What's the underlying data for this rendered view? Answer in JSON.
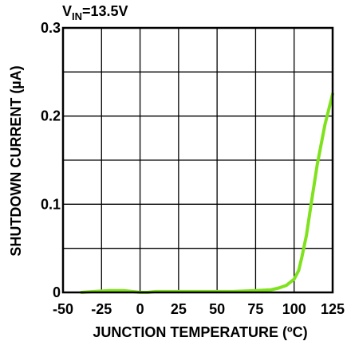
{
  "chart_data": {
    "type": "line",
    "annotation": {
      "main": "V",
      "sub": "IN",
      "rest": "=13.5V"
    },
    "xlabel": "JUNCTION TEMPERATURE (ºC)",
    "ylabel": "SHUTDOWN CURRENT (µA)",
    "xlim": [
      -50,
      125
    ],
    "ylim": [
      0,
      0.3
    ],
    "x_ticks": [
      -50,
      -25,
      0,
      25,
      50,
      75,
      100,
      125
    ],
    "x_tick_labels": [
      "-50",
      "-25",
      "0",
      "25",
      "50",
      "75",
      "100",
      "125"
    ],
    "y_ticks": [
      0,
      0.1,
      0.2,
      0.3
    ],
    "y_tick_labels": [
      "0",
      "0.1",
      "0.2",
      "0.3"
    ],
    "grid": true,
    "series": [
      {
        "color": "#80e21e",
        "x": [
          -38,
          -30,
          -20,
          -10,
          -5,
          0,
          5,
          10,
          20,
          40,
          60,
          75,
          85,
          90,
          95,
          100,
          103,
          105,
          108,
          111,
          115,
          120,
          125
        ],
        "y": [
          0.0,
          0.001,
          0.002,
          0.002,
          0.001,
          0.0,
          0.0,
          0.001,
          0.001,
          0.001,
          0.001,
          0.002,
          0.003,
          0.005,
          0.008,
          0.015,
          0.025,
          0.04,
          0.065,
          0.1,
          0.145,
          0.19,
          0.225
        ]
      }
    ]
  }
}
